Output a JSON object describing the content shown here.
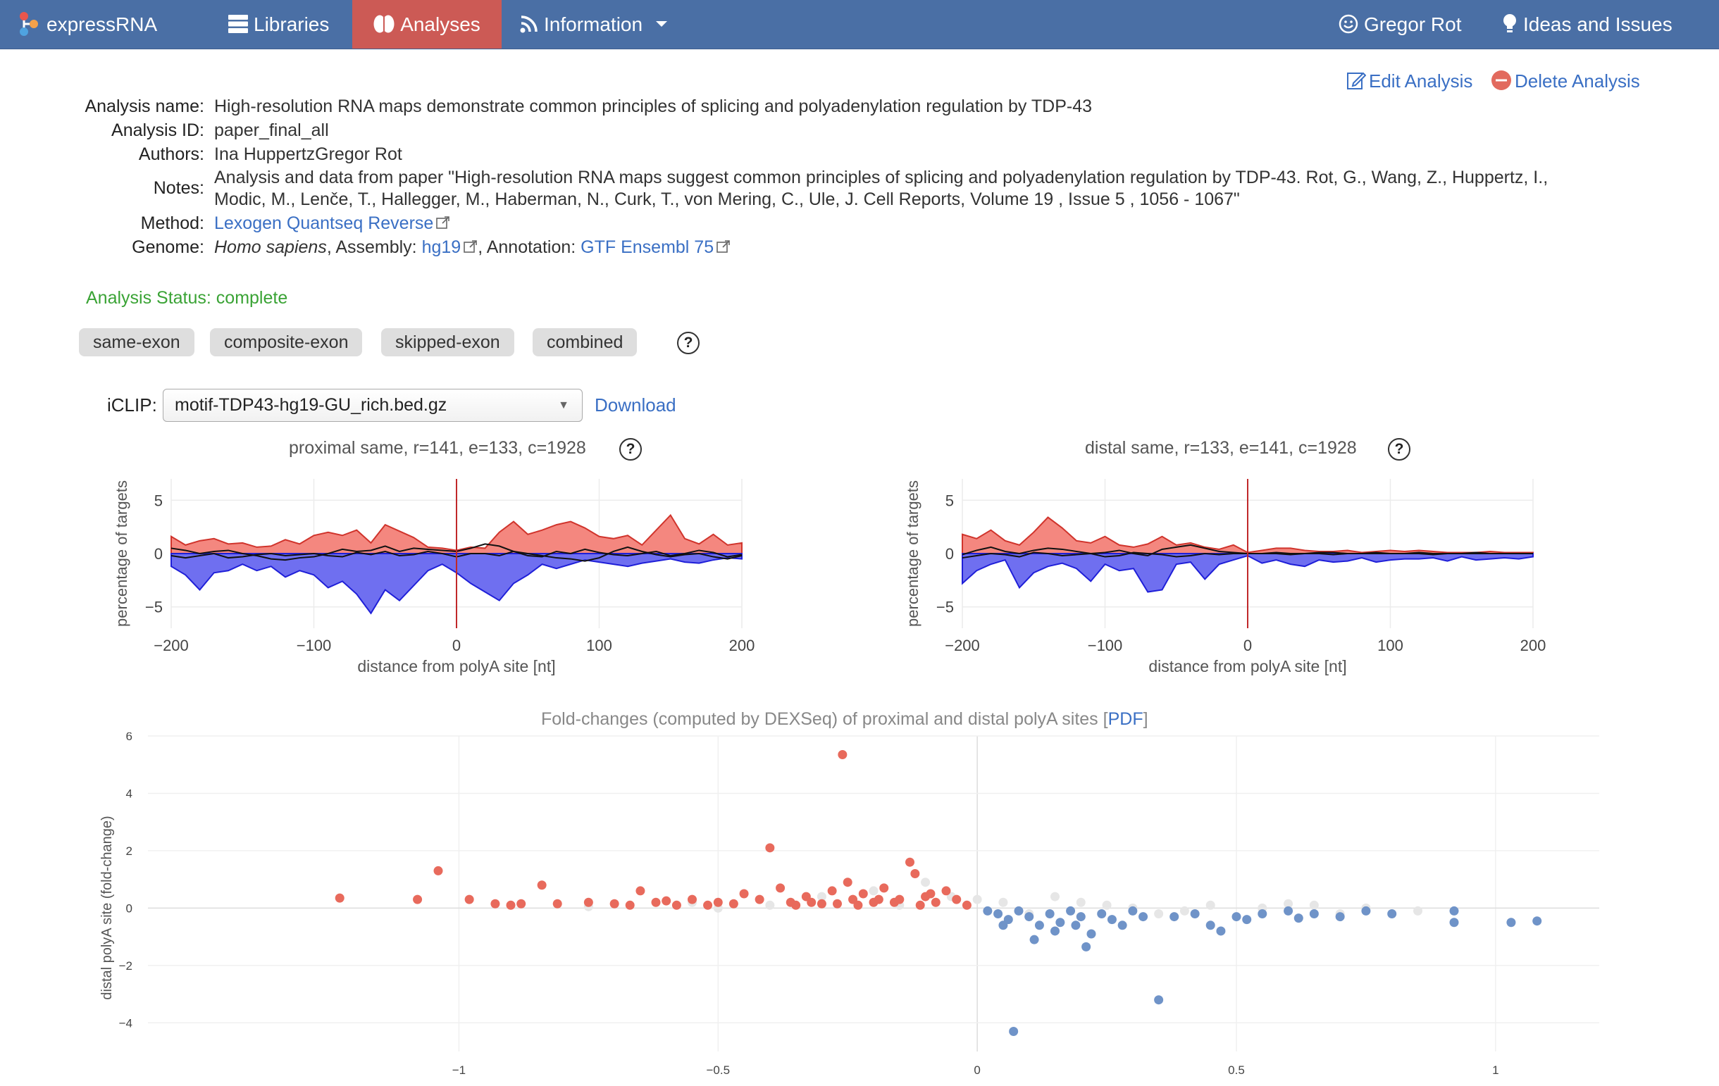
{
  "nav": {
    "brand": "expressRNA",
    "libraries": "Libraries",
    "analyses": "Analyses",
    "information": "Information",
    "user": "Gregor Rot",
    "ideas": "Ideas and Issues"
  },
  "actions": {
    "edit": "Edit Analysis",
    "delete": "Delete Analysis"
  },
  "info": {
    "name_label": "Analysis name:",
    "name_value": "High-resolution RNA maps demonstrate common principles of splicing and polyadenylation regulation by TDP-43",
    "id_label": "Analysis ID:",
    "id_value": "paper_final_all",
    "authors_label": "Authors:",
    "authors_value": "Ina HuppertzGregor Rot",
    "notes_label": "Notes:",
    "notes_line1": "Analysis and data from paper \"High-resolution RNA maps suggest common principles of splicing and polyadenylation regulation by TDP-43. Rot, G., Wang, Z., Huppertz, I.,",
    "notes_line2": "Modic, M., Lenče, T., Hallegger, M., Haberman, N., Curk, T., von Mering, C., Ule, J. Cell Reports, Volume 19 , Issue 5 , 1056 - 1067\"",
    "method_label": "Method:",
    "method_value": "Lexogen Quantseq Reverse",
    "genome_label": "Genome:",
    "genome_species": "Homo sapiens",
    "genome_assembly_label": ", Assembly: ",
    "genome_assembly": "hg19",
    "genome_annotation_label": ", Annotation: ",
    "genome_annotation": "GTF Ensembl 75"
  },
  "status": "Analysis Status: complete",
  "filters": [
    "same-exon",
    "composite-exon",
    "skipped-exon",
    "combined"
  ],
  "help_glyph": "?",
  "iclip": {
    "label": "iCLIP:",
    "selected": "motif-TDP43-hg19-GU_rich.bed.gz",
    "download": "Download"
  },
  "colors": {
    "nav": "#4a6fa5",
    "active": "#cc5a55",
    "up": "#f4877f",
    "down": "#6f6ff0",
    "scatter_up": "#e86a5c",
    "scatter_down": "#6f93c8",
    "scatter_neutral": "#e6e6e6",
    "status": "#3aa335",
    "link": "#3a6fc4"
  },
  "chart_data": [
    {
      "type": "area",
      "title": "proximal same, r=141, e=133, c=1928",
      "xlabel": "distance from polyA site [nt]",
      "ylabel": "percentage of targets",
      "xlim": [
        -200,
        200
      ],
      "ylim": [
        -7,
        7
      ],
      "xticks": [
        "−200",
        "−100",
        "0",
        "100",
        "200"
      ],
      "yticks": [
        "5",
        "0",
        "−5"
      ],
      "x": [
        -200,
        -190,
        -180,
        -170,
        -160,
        -150,
        -140,
        -130,
        -120,
        -110,
        -100,
        -90,
        -80,
        -70,
        -60,
        -50,
        -40,
        -30,
        -20,
        -10,
        0,
        10,
        20,
        30,
        40,
        50,
        60,
        70,
        80,
        90,
        100,
        110,
        120,
        130,
        140,
        150,
        160,
        170,
        180,
        190,
        200
      ],
      "series": [
        {
          "values": [
            1.6,
            0.8,
            1.2,
            1.4,
            0.9,
            1.0,
            0.6,
            0.7,
            1.3,
            0.9,
            1.7,
            2.0,
            1.7,
            2.2,
            1.0,
            2.7,
            2.1,
            1.5,
            0.6,
            0.5,
            0.3,
            0.6,
            0.5,
            2.0,
            3.0,
            1.8,
            2.2,
            2.7,
            3.0,
            2.4,
            1.6,
            1.4,
            1.7,
            0.8,
            2.2,
            3.6,
            1.4,
            0.9,
            1.8,
            0.8,
            1.0
          ]
        },
        {
          "values": [
            -1.2,
            -2.0,
            -3.4,
            -1.8,
            -1.6,
            -1.0,
            -1.6,
            -1.2,
            -2.2,
            -1.6,
            -2.0,
            -3.2,
            -2.6,
            -3.8,
            -5.6,
            -3.4,
            -4.4,
            -3.0,
            -1.6,
            -1.0,
            -1.8,
            -2.8,
            -3.6,
            -4.4,
            -2.8,
            -2.0,
            -1.0,
            -1.4,
            -1.0,
            -0.6,
            -0.8,
            -1.0,
            -1.2,
            -0.9,
            -0.7,
            -0.5,
            -0.8,
            -0.9,
            -0.6,
            -0.4,
            -0.5
          ]
        },
        {
          "values": [
            0.5,
            0.3,
            0.0,
            0.2,
            0.3,
            0.0,
            -0.2,
            -0.5,
            -0.6,
            -0.4,
            -0.3,
            0.0,
            0.4,
            0.2,
            0.3,
            0.7,
            0.2,
            0.5,
            0.4,
            0.3,
            0.2,
            0.5,
            0.9,
            0.7,
            0.2,
            0.0,
            -0.2,
            -0.4,
            -0.5,
            -0.7,
            -0.4,
            0.2,
            0.6,
            0.2,
            -0.1,
            -0.3,
            -0.1,
            0.0,
            -0.3,
            -0.5,
            -0.2
          ]
        },
        {
          "values": [
            -0.2,
            -0.4,
            -0.2,
            0.0,
            -0.4,
            -0.3,
            -0.1,
            0.0,
            -0.2,
            -0.1,
            0.0,
            -0.2,
            -0.3,
            0.1,
            -0.1,
            0.2,
            -0.2,
            -0.1,
            0.2,
            0.0,
            -0.3,
            0.0,
            0.0,
            -0.2,
            0.2,
            -0.2,
            -0.3,
            0.2,
            0.0,
            0.4,
            0.1,
            -0.1,
            -0.2,
            0.0,
            0.2,
            -0.2,
            0.0,
            0.3,
            0.1,
            -0.3,
            -0.1
          ]
        }
      ]
    },
    {
      "type": "area",
      "title": "distal same, r=133, e=141, c=1928",
      "xlabel": "distance from polyA site [nt]",
      "ylabel": "percentage of targets",
      "xlim": [
        -200,
        200
      ],
      "ylim": [
        -7,
        7
      ],
      "xticks": [
        "−200",
        "−100",
        "0",
        "100",
        "200"
      ],
      "yticks": [
        "5",
        "0",
        "−5"
      ],
      "x": [
        -200,
        -190,
        -180,
        -170,
        -160,
        -150,
        -140,
        -130,
        -120,
        -110,
        -100,
        -90,
        -80,
        -70,
        -60,
        -50,
        -40,
        -30,
        -20,
        -10,
        0,
        10,
        20,
        30,
        40,
        50,
        60,
        70,
        80,
        90,
        100,
        110,
        120,
        130,
        140,
        150,
        160,
        170,
        180,
        190,
        200
      ],
      "series": [
        {
          "values": [
            1.8,
            1.4,
            2.2,
            1.2,
            0.8,
            2.0,
            3.4,
            2.4,
            1.2,
            1.0,
            1.6,
            0.8,
            0.6,
            0.9,
            1.6,
            0.8,
            1.0,
            0.6,
            0.4,
            0.8,
            0.1,
            0.3,
            0.5,
            0.5,
            0.3,
            0.2,
            0.2,
            0.3,
            0.1,
            0.2,
            0.3,
            0.2,
            0.3,
            0.2,
            0.1,
            0.1,
            0.1,
            0.2,
            0.1,
            0.1,
            0.1
          ]
        },
        {
          "values": [
            -2.8,
            -1.6,
            -1.0,
            -0.6,
            -3.2,
            -1.8,
            -1.2,
            -0.9,
            -1.4,
            -2.6,
            -1.0,
            -1.6,
            -1.4,
            -3.6,
            -3.4,
            -1.0,
            -0.8,
            -2.4,
            -1.0,
            -0.6,
            -0.2,
            -0.9,
            -0.6,
            -1.0,
            -1.2,
            -0.6,
            -0.8,
            -0.7,
            -0.4,
            -0.8,
            -0.6,
            -0.5,
            -0.5,
            -0.4,
            -0.7,
            -0.3,
            -0.6,
            -0.5,
            -0.4,
            -0.5,
            -0.3
          ]
        },
        {
          "values": [
            -0.1,
            0.3,
            0.6,
            0.2,
            0.0,
            0.3,
            0.5,
            0.4,
            0.2,
            0.0,
            0.1,
            0.3,
            0.0,
            -0.2,
            0.4,
            0.6,
            0.8,
            0.5,
            0.2,
            0.1,
            0.0,
            0.0,
            0.1,
            0.0,
            0.0,
            0.1,
            0.1,
            0.0,
            0.0,
            0.1,
            0.0,
            0.0,
            0.1,
            0.0,
            0.0,
            0.0,
            0.1,
            0.0,
            0.0,
            0.0,
            0.0
          ]
        },
        {
          "values": [
            -0.4,
            -0.2,
            0.0,
            -0.1,
            -0.3,
            0.1,
            0.0,
            -0.2,
            -0.1,
            0.0,
            -0.3,
            -0.2,
            0.1,
            0.0,
            -0.1,
            -0.3,
            -0.2,
            0.0,
            -0.1,
            0.0,
            0.0,
            0.0,
            0.0,
            -0.1,
            0.0,
            0.0,
            -0.1,
            0.0,
            0.0,
            0.0,
            0.0,
            0.0,
            0.0,
            -0.1,
            0.0,
            0.0,
            0.0,
            0.0,
            0.0,
            0.0,
            0.0
          ]
        }
      ]
    },
    {
      "type": "scatter",
      "title": "Fold-changes (computed by DEXSeq) of proximal and distal polyA sites",
      "title_bracket_open": "[",
      "title_link": "PDF",
      "title_bracket_close": "]",
      "xlabel": "",
      "ylabel": "distal polyA site (fold-change)",
      "xlim": [
        -1.6,
        1.2
      ],
      "ylim": [
        -5,
        6
      ],
      "xticks": [
        "−1",
        "−0.5",
        "0",
        "0.5",
        "1"
      ],
      "yticks": [
        "6",
        "4",
        "2",
        "0",
        "−2",
        "−4"
      ],
      "series": [
        {
          "values": [
            [
              -1.23,
              0.35
            ],
            [
              -1.08,
              0.3
            ],
            [
              -1.04,
              1.3
            ],
            [
              -0.98,
              0.3
            ],
            [
              -0.93,
              0.15
            ],
            [
              -0.9,
              0.1
            ],
            [
              -0.88,
              0.15
            ],
            [
              -0.84,
              0.8
            ],
            [
              -0.81,
              0.15
            ],
            [
              -0.75,
              0.2
            ],
            [
              -0.7,
              0.15
            ],
            [
              -0.67,
              0.1
            ],
            [
              -0.62,
              0.2
            ],
            [
              -0.6,
              0.25
            ],
            [
              -0.58,
              0.1
            ],
            [
              -0.55,
              0.3
            ],
            [
              -0.5,
              0.2
            ],
            [
              -0.45,
              0.5
            ],
            [
              -0.42,
              0.3
            ],
            [
              -0.4,
              2.1
            ],
            [
              -0.38,
              0.7
            ],
            [
              -0.36,
              0.2
            ],
            [
              -0.33,
              0.4
            ],
            [
              -0.3,
              0.15
            ],
            [
              -0.28,
              0.6
            ],
            [
              -0.26,
              5.35
            ],
            [
              -0.25,
              0.9
            ],
            [
              -0.24,
              0.3
            ],
            [
              -0.22,
              0.5
            ],
            [
              -0.2,
              0.2
            ],
            [
              -0.18,
              0.7
            ],
            [
              -0.15,
              0.3
            ],
            [
              -0.13,
              1.6
            ],
            [
              -0.12,
              1.2
            ],
            [
              -0.1,
              0.4
            ],
            [
              -0.08,
              0.2
            ],
            [
              -0.06,
              0.6
            ],
            [
              -0.04,
              0.3
            ],
            [
              -0.02,
              0.1
            ],
            [
              -0.65,
              0.6
            ],
            [
              -0.52,
              0.1
            ],
            [
              -0.47,
              0.15
            ],
            [
              -0.35,
              0.1
            ],
            [
              -0.32,
              0.2
            ],
            [
              -0.27,
              0.15
            ],
            [
              -0.23,
              0.1
            ],
            [
              -0.19,
              0.3
            ],
            [
              -0.16,
              0.2
            ],
            [
              -0.11,
              0.1
            ],
            [
              -0.09,
              0.5
            ]
          ]
        },
        {
          "values": [
            [
              0.02,
              -0.1
            ],
            [
              0.04,
              -0.2
            ],
            [
              0.06,
              -0.4
            ],
            [
              0.08,
              -0.1
            ],
            [
              0.1,
              -0.3
            ],
            [
              0.12,
              -0.6
            ],
            [
              0.14,
              -0.2
            ],
            [
              0.16,
              -0.5
            ],
            [
              0.18,
              -0.1
            ],
            [
              0.2,
              -0.3
            ],
            [
              0.22,
              -0.9
            ],
            [
              0.24,
              -0.2
            ],
            [
              0.26,
              -0.4
            ],
            [
              0.3,
              -0.1
            ],
            [
              0.32,
              -0.3
            ],
            [
              0.35,
              -3.2
            ],
            [
              0.38,
              -0.3
            ],
            [
              0.42,
              -0.2
            ],
            [
              0.45,
              -0.6
            ],
            [
              0.5,
              -0.3
            ],
            [
              0.55,
              -0.2
            ],
            [
              0.6,
              -0.1
            ],
            [
              0.65,
              -0.2
            ],
            [
              0.7,
              -0.3
            ],
            [
              0.75,
              -0.1
            ],
            [
              0.8,
              -0.2
            ],
            [
              0.92,
              -0.1
            ],
            [
              0.92,
              -0.5
            ],
            [
              1.03,
              -0.5
            ],
            [
              1.08,
              -0.45
            ],
            [
              0.07,
              -4.3
            ],
            [
              0.21,
              -1.35
            ],
            [
              0.11,
              -1.1
            ],
            [
              0.28,
              -0.6
            ],
            [
              0.47,
              -0.8
            ],
            [
              0.52,
              -0.4
            ],
            [
              0.62,
              -0.35
            ],
            [
              0.19,
              -0.6
            ],
            [
              0.15,
              -0.8
            ],
            [
              0.05,
              -0.6
            ]
          ]
        },
        {
          "values": [
            [
              -0.75,
              0.05
            ],
            [
              -0.55,
              0.2
            ],
            [
              -0.3,
              0.4
            ],
            [
              -0.2,
              0.6
            ],
            [
              -0.1,
              0.9
            ],
            [
              0.0,
              0.3
            ],
            [
              0.05,
              0.2
            ],
            [
              0.15,
              0.4
            ],
            [
              0.25,
              0.1
            ],
            [
              0.35,
              -0.2
            ],
            [
              0.45,
              0.1
            ],
            [
              0.55,
              0.0
            ],
            [
              0.65,
              0.1
            ],
            [
              0.75,
              0.0
            ],
            [
              0.85,
              -0.1
            ],
            [
              -0.4,
              0.1
            ],
            [
              -0.5,
              0.0
            ],
            [
              0.1,
              -0.2
            ],
            [
              0.2,
              0.2
            ],
            [
              0.3,
              0.0
            ],
            [
              0.4,
              -0.1
            ],
            [
              0.6,
              0.15
            ],
            [
              0.7,
              -0.2
            ],
            [
              -0.15,
              0.1
            ],
            [
              -0.05,
              0.4
            ]
          ]
        }
      ]
    }
  ]
}
